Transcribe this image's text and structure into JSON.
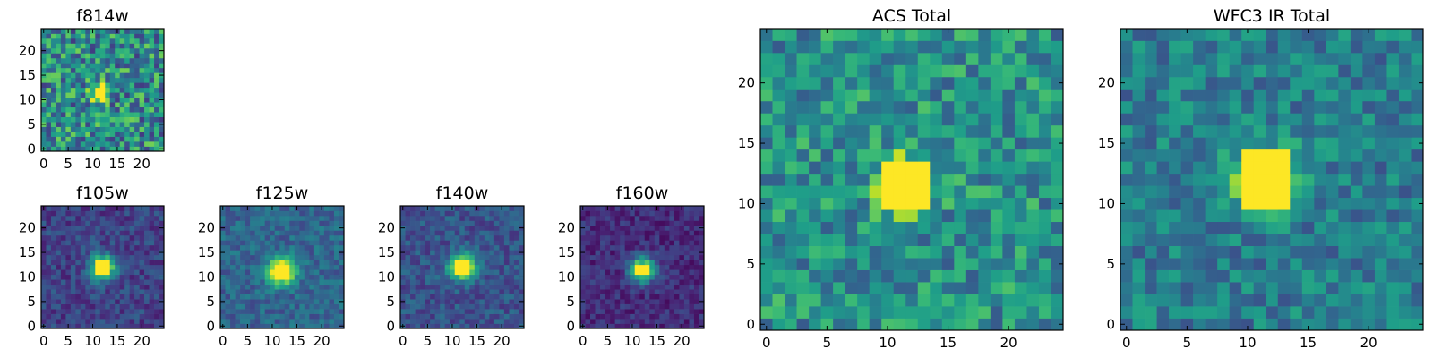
{
  "colormap": {
    "name": "viridis",
    "stops": [
      "#440154",
      "#482878",
      "#3e4989",
      "#31688e",
      "#26828e",
      "#1f9e89",
      "#35b779",
      "#6ece58",
      "#b5de2b",
      "#fde725"
    ]
  },
  "chart_data": [
    {
      "type": "heatmap",
      "id": "f814w",
      "title": "f814w",
      "grid_size": 25,
      "xlim": [
        0,
        24
      ],
      "ylim": [
        0,
        24
      ],
      "xticks": [
        0,
        5,
        10,
        15,
        20
      ],
      "yticks": [
        0,
        5,
        10,
        15,
        20
      ],
      "source": {
        "center": [
          11.5,
          11.5
        ],
        "sigma": 1.2,
        "peak": 0.95,
        "core_halfwidth": 0.8,
        "core_value": 1.0
      },
      "background": {
        "mean": 0.48,
        "noise": 0.18
      }
    },
    {
      "type": "heatmap",
      "id": "f105w",
      "title": "f105w",
      "grid_size": 25,
      "xlim": [
        0,
        24
      ],
      "ylim": [
        0,
        24
      ],
      "xticks": [
        0,
        5,
        10,
        15,
        20
      ],
      "yticks": [
        0,
        5,
        10,
        15,
        20
      ],
      "source": {
        "center": [
          12.0,
          12.0
        ],
        "sigma": 1.8,
        "peak": 0.8,
        "core_halfwidth": 1.1,
        "core_value": 1.0
      },
      "background": {
        "mean": 0.2,
        "noise": 0.07
      }
    },
    {
      "type": "heatmap",
      "id": "f125w",
      "title": "f125w",
      "grid_size": 25,
      "xlim": [
        0,
        24
      ],
      "ylim": [
        0,
        24
      ],
      "xticks": [
        0,
        5,
        10,
        15,
        20
      ],
      "yticks": [
        0,
        5,
        10,
        15,
        20
      ],
      "source": {
        "center": [
          11.8,
          11.2
        ],
        "sigma": 2.0,
        "peak": 0.8,
        "core_halfwidth": 0.9,
        "core_value": 1.0
      },
      "background": {
        "mean": 0.33,
        "noise": 0.07
      }
    },
    {
      "type": "heatmap",
      "id": "f140w",
      "title": "f140w",
      "grid_size": 25,
      "xlim": [
        0,
        24
      ],
      "ylim": [
        0,
        24
      ],
      "xticks": [
        0,
        5,
        10,
        15,
        20
      ],
      "yticks": [
        0,
        5,
        10,
        15,
        20
      ],
      "source": {
        "center": [
          12.0,
          12.0
        ],
        "sigma": 1.9,
        "peak": 0.8,
        "core_halfwidth": 1.1,
        "core_value": 1.0
      },
      "background": {
        "mean": 0.26,
        "noise": 0.07
      }
    },
    {
      "type": "heatmap",
      "id": "f160w",
      "title": "f160w",
      "grid_size": 25,
      "xlim": [
        0,
        24
      ],
      "ylim": [
        0,
        24
      ],
      "xticks": [
        0,
        5,
        10,
        15,
        20
      ],
      "yticks": [
        0,
        5,
        10,
        15,
        20
      ],
      "source": {
        "center": [
          12.0,
          11.6
        ],
        "sigma": 1.9,
        "peak": 0.75,
        "core_halfwidth": 0.9,
        "core_value": 1.0
      },
      "background": {
        "mean": 0.13,
        "noise": 0.06
      }
    },
    {
      "type": "heatmap",
      "id": "acs-total",
      "title": "ACS Total",
      "grid_size": 25,
      "xlim": [
        0,
        24
      ],
      "ylim": [
        0,
        24
      ],
      "xticks": [
        0,
        5,
        10,
        15,
        20
      ],
      "yticks": [
        0,
        5,
        10,
        15,
        20
      ],
      "source": {
        "center": [
          11.5,
          11.5
        ],
        "sigma": 1.5,
        "peak": 0.9,
        "core_halfwidth": 1.1,
        "core_value": 1.0
      },
      "background": {
        "mean": 0.5,
        "noise": 0.13
      }
    },
    {
      "type": "heatmap",
      "id": "wfc3-ir-total",
      "title": "WFC3 IR Total",
      "grid_size": 25,
      "xlim": [
        0,
        24
      ],
      "ylim": [
        0,
        24
      ],
      "xticks": [
        0,
        5,
        10,
        15,
        20
      ],
      "yticks": [
        0,
        5,
        10,
        15,
        20
      ],
      "source": {
        "center": [
          11.5,
          12.0
        ],
        "sigma": 1.8,
        "peak": 0.72,
        "core_halfwidth": 1.5,
        "core_value": 1.0
      },
      "background": {
        "mean": 0.42,
        "noise": 0.1
      }
    }
  ]
}
